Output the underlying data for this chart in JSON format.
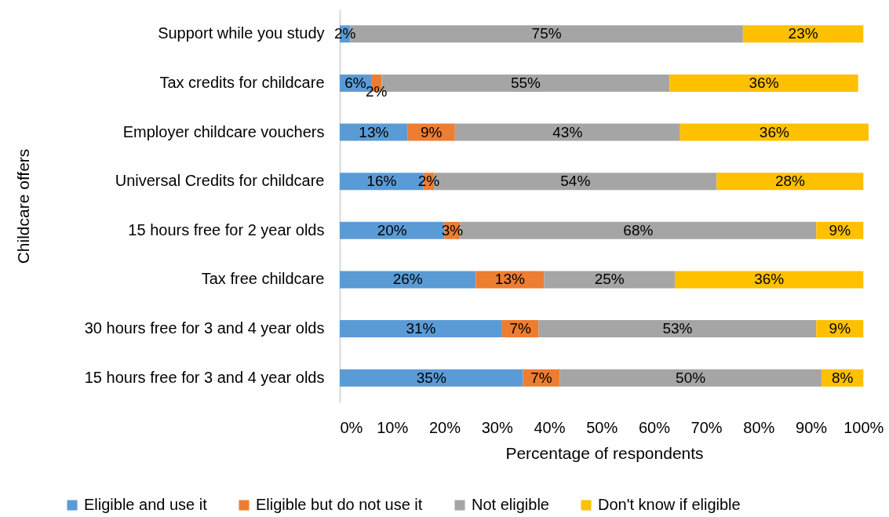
{
  "chart_data": {
    "type": "bar",
    "orientation": "horizontal",
    "stacked": true,
    "xlabel": "Percentage of respondents",
    "ylabel": "Childcare offers",
    "categories": [
      "Support while you study",
      "Tax credits for childcare",
      "Employer childcare vouchers",
      "Universal Credits for childcare",
      "15 hours free for 2 year olds",
      "Tax free childcare",
      "30 hours free for 3 and 4 year olds",
      "15 hours free for 3 and 4 year olds"
    ],
    "series": [
      {
        "name": "Eligible and use it",
        "color": "#5b9bd5",
        "values": [
          2,
          6,
          13,
          16,
          20,
          26,
          31,
          35
        ],
        "value_labels": [
          "2%",
          "6%",
          "13%",
          "16%",
          "20%",
          "26%",
          "31%",
          "35%"
        ]
      },
      {
        "name": "Eligible but do not use it",
        "color": "#ed7d31",
        "values": [
          null,
          2,
          9,
          2,
          3,
          13,
          7,
          7
        ],
        "value_labels": [
          null,
          "2%",
          "9%",
          "2%",
          "3%",
          "13%",
          "7%",
          "7%"
        ]
      },
      {
        "name": "Not eligible",
        "color": "#a5a5a5",
        "values": [
          75,
          55,
          43,
          54,
          68,
          25,
          53,
          50
        ],
        "value_labels": [
          "75%",
          "55%",
          "43%",
          "54%",
          "68%",
          "25%",
          "53%",
          "50%"
        ]
      },
      {
        "name": "Don't know if eligible",
        "color": "#ffc000",
        "values": [
          23,
          36,
          36,
          28,
          9,
          36,
          9,
          8
        ],
        "value_labels": [
          "23%",
          "36%",
          "36%",
          "28%",
          "9%",
          "36%",
          "9%",
          "8%"
        ]
      }
    ],
    "xlim": [
      0,
      101
    ],
    "xticks": [
      {
        "value": 0,
        "label": "0%"
      },
      {
        "value": 10,
        "label": "10%"
      },
      {
        "value": 20,
        "label": "20%"
      },
      {
        "value": 30,
        "label": "30%"
      },
      {
        "value": 40,
        "label": "40%"
      },
      {
        "value": 50,
        "label": "50%"
      },
      {
        "value": 60,
        "label": "60%"
      },
      {
        "value": 70,
        "label": "70%"
      },
      {
        "value": 80,
        "label": "80%"
      },
      {
        "value": 90,
        "label": "90%"
      },
      {
        "value": 100,
        "label": "100%"
      }
    ],
    "legend": "bottom"
  }
}
